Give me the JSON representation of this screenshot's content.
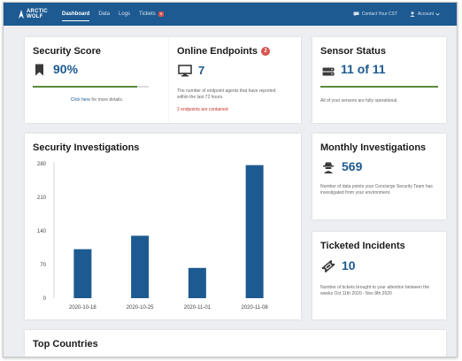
{
  "nav": {
    "logo_line1": "ARCTIC",
    "logo_line2": "WOLF",
    "links": [
      {
        "label": "Dashboard",
        "active": true
      },
      {
        "label": "Data"
      },
      {
        "label": "Logs"
      },
      {
        "label": "Tickets",
        "badge": "8"
      }
    ],
    "contact_label": "Contact Your CST",
    "account_label": "Account"
  },
  "security_score": {
    "title": "Security Score",
    "value": "90%",
    "progress": 0.9,
    "link_text": "Click here",
    "link_suffix": " for more details."
  },
  "online_endpoints": {
    "title": "Online Endpoints",
    "badge": "2",
    "value": "7",
    "description": "The number of endpoint agents that have reported within the last 72 hours.",
    "warning": "2 endpoints are contained"
  },
  "sensor_status": {
    "title": "Sensor Status",
    "value": "11 of 11",
    "description": "All of your sensors are fully operational."
  },
  "security_investigations": {
    "title": "Security Investigations"
  },
  "monthly_investigations": {
    "title": "Monthly Investigations",
    "value": "569",
    "description": "Number of data points your Concierge Security Team has investigated from your environment."
  },
  "ticketed_incidents": {
    "title": "Ticketed Incidents",
    "value": "10",
    "description": "Number of tickets brought to your attention between the weeks Oct 11th 2020 - Nov 8th 2020"
  },
  "top_countries": {
    "title": "Top Countries"
  },
  "colors": {
    "nav": "#1d5a91",
    "accent": "#1d5a91",
    "bar": "#1d5a91",
    "success": "#5a8a3a",
    "danger": "#d9534f"
  },
  "chart_data": {
    "type": "bar",
    "categories": [
      "2020-10-18",
      "2020-10-25",
      "2020-11-01",
      "2020-11-08"
    ],
    "values": [
      102,
      130,
      63,
      277
    ],
    "yticks": [
      0,
      70,
      140,
      210,
      280
    ],
    "ylim": [
      0,
      280
    ],
    "title": "Security Investigations",
    "xlabel": "",
    "ylabel": "",
    "grid": false
  }
}
